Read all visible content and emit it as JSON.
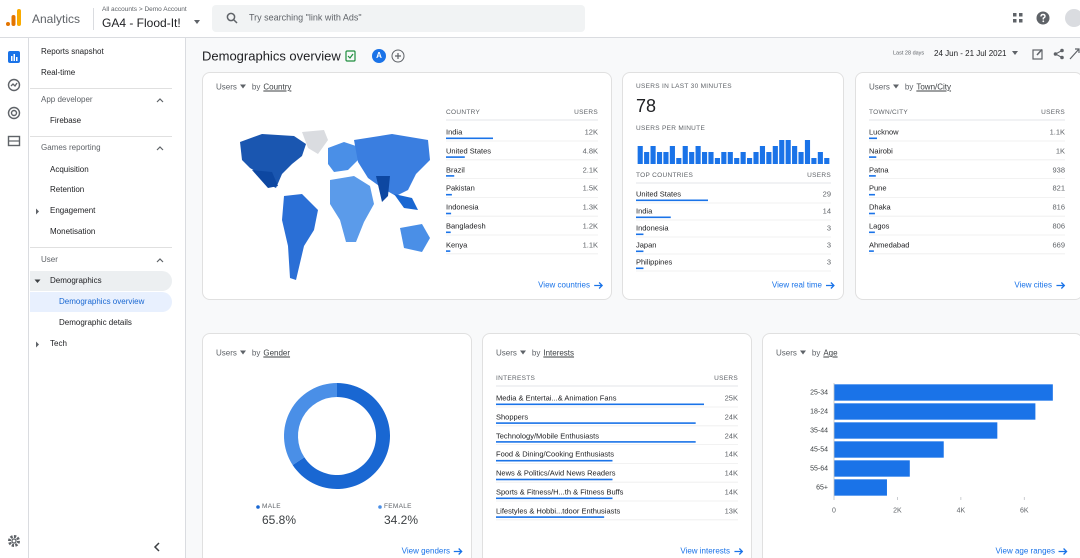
{
  "header": {
    "product": "Analytics",
    "account_path": "All accounts > Demo Account",
    "property": "GA4 - Flood-It!",
    "search": "Try searching \"link with Ads\""
  },
  "nav": {
    "top": [
      "Reports snapshot",
      "Real-time"
    ],
    "sections": [
      {
        "title": "App developer",
        "items": [
          "Firebase"
        ]
      },
      {
        "title": "Games reporting",
        "items": [
          "Acquisition",
          "Retention",
          "Engagement",
          "Monetisation"
        ]
      },
      {
        "title": "User",
        "items": [
          "Demographics",
          "Demographics overview",
          "Demographic details",
          "Tech"
        ]
      }
    ]
  },
  "page": {
    "title": "Demographics overview",
    "comparison": "A",
    "date_label": "Last 28 days",
    "date_range": "24 Jun - 21 Jul 2021"
  },
  "cards": {
    "country": {
      "metric": "Users",
      "by": "by",
      "dimension": "Country",
      "col_dimension": "COUNTRY",
      "col_metric": "USERS",
      "rows": [
        {
          "name": "India",
          "users": {
            "value": 12000,
            "label": "12K"
          }
        },
        {
          "name": "United States",
          "users": {
            "value": 4800,
            "label": "4.8K"
          }
        },
        {
          "name": "Brazil",
          "users": {
            "value": 2100,
            "label": "2.1K"
          }
        },
        {
          "name": "Pakistan",
          "users": {
            "value": 1500,
            "label": "1.5K"
          }
        },
        {
          "name": "Indonesia",
          "users": {
            "value": 1300,
            "label": "1.3K"
          }
        },
        {
          "name": "Bangladesh",
          "users": {
            "value": 1200,
            "label": "1.2K"
          }
        },
        {
          "name": "Kenya",
          "users": {
            "value": 1100,
            "label": "1.1K"
          }
        }
      ],
      "link": "View countries"
    },
    "realtime": {
      "title": "USERS IN LAST 30 MINUTES",
      "total": 78,
      "per_minute": "USERS PER MINUTE",
      "col_dimension": "TOP COUNTRIES",
      "col_metric": "USERS",
      "rows": [
        {
          "name": "United States",
          "users": 29
        },
        {
          "name": "India",
          "users": 14
        },
        {
          "name": "Indonesia",
          "users": 3
        },
        {
          "name": "Japan",
          "users": 3
        },
        {
          "name": "Philippines",
          "users": 3
        }
      ],
      "link": "View real time"
    },
    "city": {
      "metric": "Users",
      "by": "by",
      "dimension": "Town/City",
      "col_dimension": "TOWN/CITY",
      "col_metric": "USERS",
      "rows": [
        {
          "name": "Lucknow",
          "users": {
            "value": 1100,
            "label": "1.1K"
          }
        },
        {
          "name": "Nairobi",
          "users": {
            "value": 1000,
            "label": "1K"
          }
        },
        {
          "name": "Patna",
          "users": 938
        },
        {
          "name": "Pune",
          "users": 821
        },
        {
          "name": "Dhaka",
          "users": 816
        },
        {
          "name": "Lagos",
          "users": 806
        },
        {
          "name": "Ahmedabad",
          "users": 669
        }
      ],
      "link": "View cities"
    },
    "gender": {
      "metric": "Users",
      "by": "by",
      "dimension": "Gender",
      "link": "View genders"
    },
    "interests": {
      "metric": "Users",
      "by": "by",
      "dimension": "Interests",
      "col_dimension": "INTERESTS",
      "col_metric": "USERS",
      "rows": [
        {
          "name": "Media & Entertai...& Animation Fans",
          "users": {
            "value": 25000,
            "label": "25K"
          }
        },
        {
          "name": "Shoppers",
          "users": {
            "value": 24000,
            "label": "24K"
          }
        },
        {
          "name": "Technology/Mobile Enthusiasts",
          "users": {
            "value": 24000,
            "label": "24K"
          }
        },
        {
          "name": "Food & Dining/Cooking Enthusiasts",
          "users": {
            "value": 14000,
            "label": "14K"
          }
        },
        {
          "name": "News & Politics/Avid News Readers",
          "users": {
            "value": 14000,
            "label": "14K"
          }
        },
        {
          "name": "Sports & Fitness/H...th & Fitness Buffs",
          "users": {
            "value": 14000,
            "label": "14K"
          }
        },
        {
          "name": "Lifestyles & Hobbi...tdoor Enthusiasts",
          "users": {
            "value": 13000,
            "label": "13K"
          }
        }
      ],
      "link": "View interests"
    },
    "age": {
      "metric": "Users",
      "by": "by",
      "dimension": "Age",
      "link": "View age ranges"
    }
  },
  "chart_data": [
    {
      "type": "pie",
      "donut": true,
      "categories": [
        "MALE",
        "FEMALE"
      ],
      "values": [
        65.8,
        34.2
      ],
      "value_labels": [
        "65.8%",
        "34.2%"
      ],
      "colors": [
        "#1967d2",
        "#4a8fe7"
      ]
    },
    {
      "type": "bar",
      "orientation": "horizontal",
      "categories": [
        "25-34",
        "18-24",
        "35-44",
        "45-54",
        "55-64",
        "65+"
      ],
      "values": [
        6900,
        6350,
        5150,
        3460,
        2390,
        1670
      ],
      "color": "#1a73e8",
      "xlim": [
        0,
        7000
      ],
      "xticks": [
        0,
        {
          "value": 2000,
          "label": "2K"
        },
        {
          "value": 4000,
          "label": "4K"
        },
        {
          "value": 6000,
          "label": "6K"
        }
      ],
      "grid": false
    },
    {
      "type": "bar",
      "values": [
        3,
        2,
        3,
        2,
        2,
        3,
        1,
        3,
        2,
        3,
        2,
        2,
        1,
        2,
        2,
        1,
        2,
        1,
        2,
        3,
        2,
        3,
        4,
        4,
        3,
        2,
        4,
        1,
        2,
        1
      ],
      "color": "#1a73e8"
    }
  ]
}
